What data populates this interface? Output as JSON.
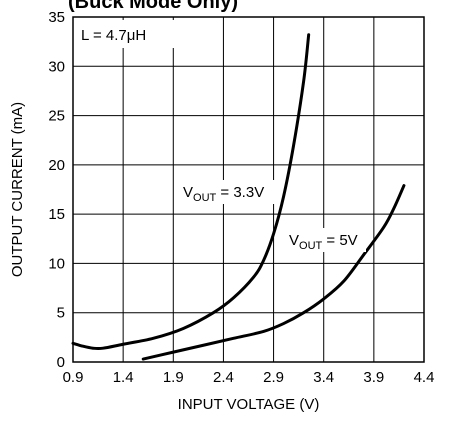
{
  "chart_data": {
    "type": "line",
    "title": "(Buck Mode Only)",
    "xlabel": "INPUT VOLTAGE (V)",
    "ylabel": "OUTPUT CURRENT (mA)",
    "xlim": [
      0.9,
      4.4
    ],
    "ylim": [
      0,
      35
    ],
    "x_ticks": [
      "0.9",
      "1.4",
      "1.9",
      "2.4",
      "2.9",
      "3.4",
      "3.9",
      "4.4"
    ],
    "y_ticks": [
      "0",
      "5",
      "10",
      "15",
      "20",
      "25",
      "30",
      "35"
    ],
    "grid": true,
    "annotation": {
      "prefix": "L = 4.7",
      "mu": "μ",
      "suffix": "H",
      "position": "top-left"
    },
    "series": [
      {
        "name": "VOUT = 3.3V",
        "label_main": "V",
        "label_sub": "OUT",
        "label_value": " = 3.3V",
        "x": [
          0.9,
          1.0,
          1.1,
          1.2,
          1.4,
          1.7,
          2.0,
          2.3,
          2.5,
          2.7,
          2.8,
          2.9,
          3.0,
          3.1,
          3.2,
          3.25
        ],
        "y": [
          1.9,
          1.6,
          1.4,
          1.4,
          1.8,
          2.4,
          3.4,
          5.0,
          6.5,
          8.6,
          10.3,
          13.0,
          16.8,
          22.0,
          28.5,
          33.2
        ]
      },
      {
        "name": "VOUT = 5V",
        "label_main": "V",
        "label_sub": "OUT",
        "label_value": " = 5V",
        "x": [
          1.6,
          1.9,
          2.2,
          2.5,
          2.8,
          3.0,
          3.2,
          3.4,
          3.6,
          3.8,
          4.0,
          4.1,
          4.2
        ],
        "y": [
          0.3,
          1.0,
          1.7,
          2.4,
          3.1,
          3.9,
          5.0,
          6.4,
          8.2,
          10.9,
          13.7,
          15.6,
          17.9
        ]
      }
    ]
  }
}
